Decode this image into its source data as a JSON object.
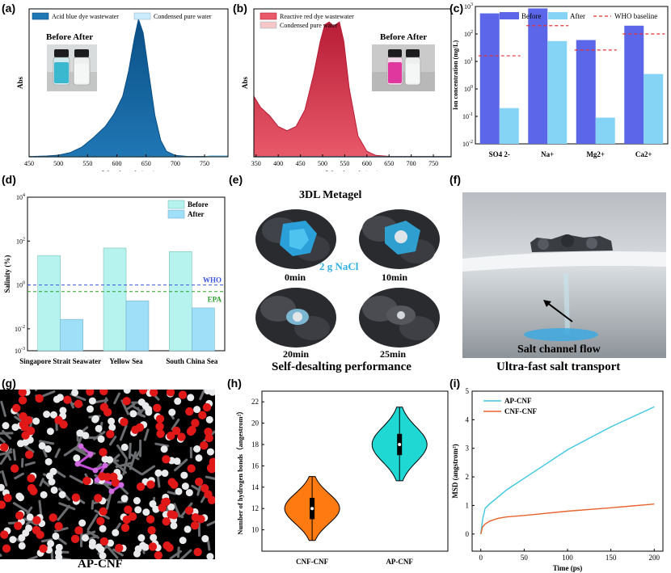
{
  "panel_labels": [
    "(a)",
    "(b)",
    "(c)",
    "(d)",
    "(e)",
    "(f)",
    "(g)",
    "(h)",
    "(i)"
  ],
  "colors": {
    "blue_dye": "#1f77b4",
    "blue_dye_dark": "#0b4f86",
    "red_dye": "#e8596a",
    "red_dye_dark": "#b81d36",
    "bar_before": "#5b66e8",
    "bar_after": "#86d4f5",
    "who_line": "#e83030",
    "sal_before": "#b6f2ee",
    "sal_after": "#9fdff7",
    "who_dash": "#3d56e0",
    "epa_dash": "#2ea02e",
    "violin_cnf": "#ff7a10",
    "violin_ap": "#1fd8d4",
    "msd_ap": "#3ec7e0",
    "msd_cnf": "#e8642c"
  },
  "photo_captions": {
    "before_after_a": "Before After",
    "before_after_b": "Before After",
    "e_title": "3DL Metagel",
    "e_salt": "2 g NaCl",
    "e_t0": "0min",
    "e_t10": "10min",
    "e_t20": "20min",
    "e_t25": "25min",
    "e_caption": "Self-desalting performance",
    "f_flow": "Salt channel flow",
    "f_caption": "Ultra-fast salt transport",
    "g_caption": "AP-CNF"
  },
  "chart_data": [
    {
      "id": "a",
      "type": "area",
      "xlabel": "Wavelength (nm)",
      "ylabel": "Abs",
      "xlim": [
        450,
        790
      ],
      "xticks": [
        "450",
        "500",
        "550",
        "600",
        "650",
        "700",
        "750"
      ],
      "series": [
        {
          "name": "Acid blue dye wastewater",
          "x": [
            450,
            480,
            500,
            520,
            540,
            560,
            580,
            595,
            610,
            620,
            630,
            637,
            645,
            655,
            665,
            675,
            685,
            700,
            720,
            790
          ],
          "y": [
            0.002,
            0.006,
            0.012,
            0.03,
            0.07,
            0.14,
            0.22,
            0.31,
            0.44,
            0.62,
            0.86,
            1.0,
            0.9,
            0.6,
            0.3,
            0.12,
            0.04,
            0.01,
            0.003,
            0.002
          ]
        },
        {
          "name": "Condensed pure water",
          "x": [
            450,
            750,
            760,
            790
          ],
          "y": [
            0.0,
            0.0,
            0.006,
            0.006
          ]
        }
      ]
    },
    {
      "id": "b",
      "type": "area",
      "xlabel": "Wavelength (nm)",
      "ylabel": "Abs",
      "xlim": [
        345,
        790
      ],
      "xticks": [
        "350",
        "400",
        "450",
        "500",
        "550",
        "600",
        "650",
        "700",
        "750"
      ],
      "series": [
        {
          "name": "Reactive red dye wastewater",
          "x": [
            345,
            360,
            380,
            400,
            420,
            440,
            460,
            480,
            495,
            505,
            515,
            525,
            538,
            548,
            560,
            580,
            600,
            620,
            650,
            790
          ],
          "y": [
            0.44,
            0.36,
            0.3,
            0.22,
            0.19,
            0.22,
            0.34,
            0.6,
            0.84,
            0.96,
            0.98,
            0.95,
            0.98,
            0.84,
            0.5,
            0.15,
            0.04,
            0.01,
            0.003,
            0.002
          ]
        },
        {
          "name": "Condensed pure water",
          "x": [
            345,
            790
          ],
          "y": [
            0.0,
            0.0
          ]
        }
      ]
    },
    {
      "id": "c",
      "type": "bar",
      "yscale": "log",
      "ylabel": "Ion concentration (mg/L)",
      "ylim": [
        0.01,
        1000
      ],
      "yticks": [
        "10^-2",
        "10^-1",
        "10^0",
        "10^1",
        "10^2",
        "10^3"
      ],
      "categories": [
        "SO4 2-",
        "Na+",
        "Mg2+",
        "Ca2+"
      ],
      "series": [
        {
          "name": "Before",
          "values": [
            560,
            850,
            60,
            200
          ]
        },
        {
          "name": "After",
          "values": [
            0.2,
            55,
            0.09,
            3.5
          ]
        }
      ],
      "reference": {
        "name": "WHO baseline",
        "values": [
          16,
          200,
          26,
          100
        ]
      }
    },
    {
      "id": "d",
      "type": "bar",
      "yscale": "log",
      "ylabel": "Salinity (%)",
      "ylim": [
        0.001,
        10000
      ],
      "yticks": [
        "10^-3",
        "10^-2",
        "10^0",
        "10^2",
        "10^4"
      ],
      "categories": [
        "Singapore Strait Seawater",
        "Yellow Sea",
        "South China Sea"
      ],
      "series": [
        {
          "name": "Before",
          "values": [
            22,
            48,
            33
          ]
        },
        {
          "name": "After",
          "values": [
            0.027,
            0.19,
            0.09
          ]
        }
      ],
      "references": [
        {
          "name": "WHO",
          "value": 1.0
        },
        {
          "name": "EPA",
          "value": 0.5
        }
      ]
    },
    {
      "id": "h",
      "type": "violin",
      "ylabel": "Number of hydrogen bonds（angestrom²）",
      "ylim": [
        8,
        23
      ],
      "yticks": [
        "10",
        "12",
        "14",
        "16",
        "18",
        "20",
        "22"
      ],
      "categories": [
        "CNF-CNF",
        "AP-CNF"
      ],
      "series": [
        {
          "name": "CNF-CNF",
          "min": 9,
          "q1": 11,
          "median": 12,
          "q3": 13,
          "max": 15,
          "mode": 12
        },
        {
          "name": "AP-CNF",
          "min": 14.6,
          "q1": 17,
          "median": 18,
          "q3": 19,
          "max": 21.5,
          "mode": 18
        }
      ]
    },
    {
      "id": "i",
      "type": "line",
      "xlabel": "Time (ps)",
      "ylabel": "MSD (angstrom²)",
      "xlim": [
        -10,
        210
      ],
      "ylim": [
        -0.6,
        5
      ],
      "xticks": [
        "0",
        "50",
        "100",
        "150",
        "200"
      ],
      "yticks": [
        "0",
        "1",
        "2",
        "3",
        "4",
        "5"
      ],
      "series": [
        {
          "name": "AP-CNF",
          "x": [
            0,
            2,
            5,
            10,
            20,
            30,
            50,
            75,
            100,
            125,
            150,
            175,
            200
          ],
          "y": [
            0,
            0.5,
            0.9,
            1.05,
            1.3,
            1.55,
            1.95,
            2.45,
            2.95,
            3.35,
            3.75,
            4.1,
            4.45
          ]
        },
        {
          "name": "CNF-CNF",
          "x": [
            0,
            2,
            5,
            10,
            20,
            30,
            50,
            100,
            150,
            200
          ],
          "y": [
            0,
            0.25,
            0.35,
            0.45,
            0.55,
            0.6,
            0.65,
            0.8,
            0.92,
            1.05
          ]
        }
      ]
    }
  ]
}
